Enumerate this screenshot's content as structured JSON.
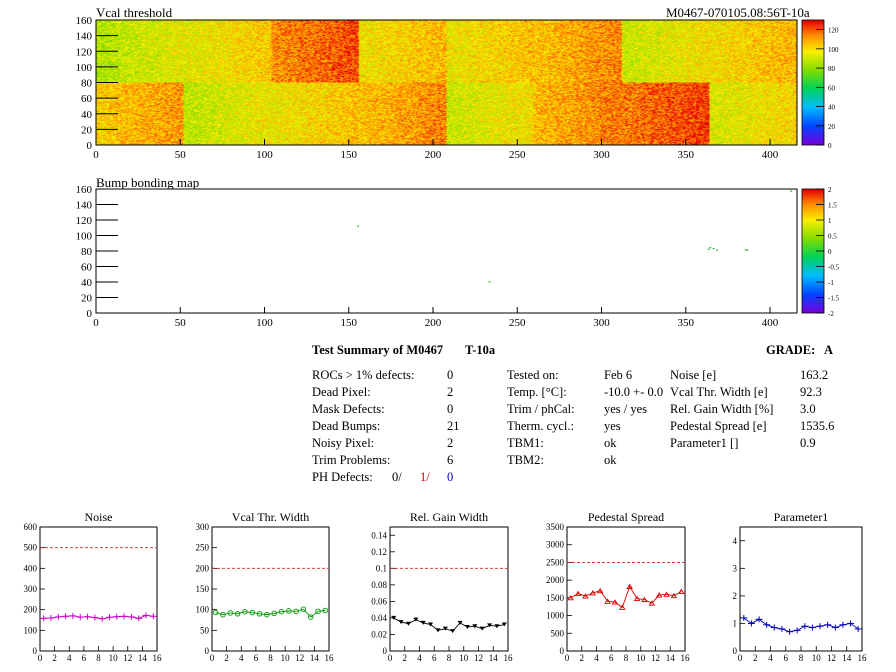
{
  "top_map": {
    "title": "Vcal threshold",
    "module_label": "M0467-070105.08:56T-10a",
    "x_ticks": [
      "0",
      "50",
      "100",
      "150",
      "200",
      "250",
      "300",
      "350",
      "400"
    ],
    "y_ticks": [
      "0",
      "20",
      "40",
      "60",
      "80",
      "100",
      "120",
      "140",
      "160"
    ],
    "xlim": [
      0,
      416
    ],
    "ylim": [
      0,
      160
    ],
    "color_scale_ticks": [
      "0",
      "20",
      "40",
      "60",
      "80",
      "100",
      "120"
    ],
    "zrange": [
      0,
      130
    ]
  },
  "bump_map": {
    "title": "Bump bonding map",
    "x_ticks": [
      "0",
      "50",
      "100",
      "150",
      "200",
      "250",
      "300",
      "350",
      "400"
    ],
    "y_ticks": [
      "0",
      "20",
      "40",
      "60",
      "80",
      "100",
      "120",
      "140",
      "160"
    ],
    "xlim": [
      0,
      416
    ],
    "ylim": [
      0,
      160
    ],
    "color_scale_ticks": [
      "-2",
      "-1.5",
      "-1",
      "-0.5",
      "0",
      "0.5",
      "1",
      "1.5",
      "2"
    ],
    "zrange": [
      -2,
      2
    ]
  },
  "summary": {
    "title": "Test Summary of M0467",
    "tag": "T-10a",
    "grade_label": "GRADE:",
    "grade": "A",
    "defects": [
      {
        "label": "ROCs > 1% defects:",
        "value": "0"
      },
      {
        "label": "Dead Pixel:",
        "value": "2"
      },
      {
        "label": "Mask Defects:",
        "value": "0"
      },
      {
        "label": "Dead Bumps:",
        "value": "21"
      },
      {
        "label": "Noisy Pixel:",
        "value": "2"
      },
      {
        "label": "Trim Problems:",
        "value": "6"
      }
    ],
    "ph_label": "PH Defects:",
    "ph_values": [
      "0/",
      "1/",
      "0"
    ],
    "ph_colors": [
      "#000000",
      "#d40000",
      "#0000c8"
    ],
    "conditions": [
      {
        "label": "Tested on:",
        "value": "Feb 6"
      },
      {
        "label": "Temp. [°C]:",
        "value": "-10.0 +- 0.0"
      },
      {
        "label": "Trim / phCal:",
        "value": "yes / yes"
      },
      {
        "label": "Therm. cycl.:",
        "value": "yes"
      },
      {
        "label": "TBM1:",
        "value": "ok"
      },
      {
        "label": "TBM2:",
        "value": "ok"
      }
    ],
    "parameters": [
      {
        "label": "Noise [e]",
        "value": "163.2"
      },
      {
        "label": "Vcal Thr. Width [e]",
        "value": "92.3"
      },
      {
        "label": "Rel. Gain Width [%]",
        "value": "3.0"
      },
      {
        "label": "Pedestal Spread [e]",
        "value": "1535.6"
      },
      {
        "label": "Parameter1 []",
        "value": "0.9"
      }
    ]
  },
  "chart_data": [
    {
      "type": "line",
      "title": "Noise",
      "color": "#cc00cc",
      "marker": "cross",
      "x": [
        0,
        1,
        2,
        3,
        4,
        5,
        6,
        7,
        8,
        9,
        10,
        11,
        12,
        13,
        14,
        15
      ],
      "values": [
        158,
        160,
        165,
        168,
        170,
        164,
        166,
        162,
        156,
        163,
        166,
        168,
        165,
        158,
        172,
        168
      ],
      "ylim": [
        0,
        600
      ],
      "y_ticks": [
        "0",
        "100",
        "200",
        "300",
        "400",
        "500",
        "600"
      ],
      "x_ticks": [
        "0",
        "2",
        "4",
        "6",
        "8",
        "10",
        "12",
        "14",
        "16"
      ],
      "limit": 500
    },
    {
      "type": "line",
      "title": "Vcal Thr. Width",
      "color": "#009900",
      "marker": "circle",
      "x": [
        0,
        1,
        2,
        3,
        4,
        5,
        6,
        7,
        8,
        9,
        10,
        11,
        12,
        13,
        14,
        15
      ],
      "values": [
        93,
        88,
        92,
        90,
        95,
        93,
        90,
        88,
        91,
        95,
        97,
        96,
        101,
        82,
        96,
        98
      ],
      "ylim": [
        0,
        300
      ],
      "y_ticks": [
        "0",
        "50",
        "100",
        "150",
        "200",
        "250",
        "300"
      ],
      "x_ticks": [
        "0",
        "2",
        "4",
        "6",
        "8",
        "10",
        "12",
        "14",
        "16"
      ],
      "limit": 200
    },
    {
      "type": "line",
      "title": "Rel. Gain Width",
      "color": "#000000",
      "marker": "triangle-down",
      "x": [
        0,
        1,
        2,
        3,
        4,
        5,
        6,
        7,
        8,
        9,
        10,
        11,
        12,
        13,
        14,
        15
      ],
      "values": [
        0.04,
        0.035,
        0.033,
        0.038,
        0.034,
        0.032,
        0.025,
        0.027,
        0.024,
        0.034,
        0.029,
        0.03,
        0.027,
        0.031,
        0.03,
        0.032
      ],
      "ylim": [
        0,
        0.15
      ],
      "y_ticks": [
        "0",
        "0.02",
        "0.04",
        "0.06",
        "0.08",
        "0.1",
        "0.12",
        "0.14"
      ],
      "x_ticks": [
        "0",
        "2",
        "4",
        "6",
        "8",
        "10",
        "12",
        "14",
        "16"
      ],
      "limit": 0.1
    },
    {
      "type": "line",
      "title": "Pedestal Spread",
      "color": "#dd0000",
      "marker": "triangle-up",
      "x": [
        0,
        1,
        2,
        3,
        4,
        5,
        6,
        7,
        8,
        9,
        10,
        11,
        12,
        13,
        14,
        15
      ],
      "values": [
        1500,
        1620,
        1550,
        1640,
        1700,
        1400,
        1380,
        1230,
        1820,
        1480,
        1450,
        1350,
        1580,
        1600,
        1560,
        1680
      ],
      "ylim": [
        0,
        3500
      ],
      "y_ticks": [
        "0",
        "500",
        "1000",
        "1500",
        "2000",
        "2500",
        "3000",
        "3500"
      ],
      "x_ticks": [
        "0",
        "2",
        "4",
        "6",
        "8",
        "10",
        "12",
        "14",
        "16"
      ],
      "limit": 2500
    },
    {
      "type": "line",
      "title": "Parameter1",
      "color": "#0000bb",
      "marker": "cross",
      "x": [
        0,
        1,
        2,
        3,
        4,
        5,
        6,
        7,
        8,
        9,
        10,
        11,
        12,
        13,
        14,
        15
      ],
      "values": [
        1.2,
        1.0,
        1.15,
        0.95,
        0.85,
        0.8,
        0.7,
        0.75,
        0.9,
        0.85,
        0.9,
        0.95,
        0.85,
        0.95,
        1.0,
        0.8
      ],
      "ylim": [
        0,
        4.5
      ],
      "y_ticks": [
        "0",
        "1",
        "2",
        "3",
        "4"
      ],
      "x_ticks": [
        "0",
        "2",
        "4",
        "6",
        "8",
        "10",
        "12",
        "14",
        "16"
      ]
    }
  ]
}
